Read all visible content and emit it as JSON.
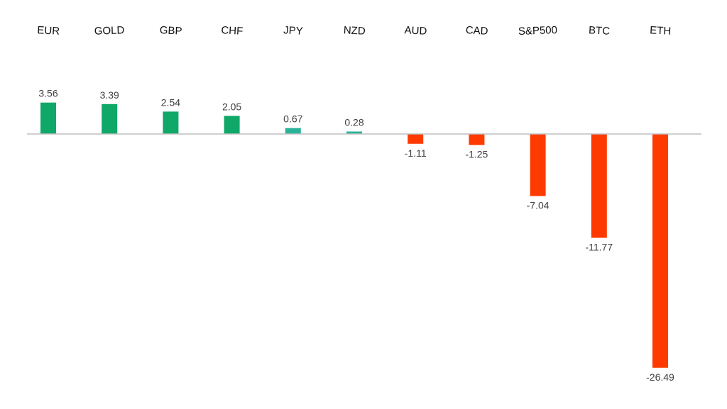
{
  "chart_data": {
    "type": "bar",
    "categories": [
      "EUR",
      "GOLD",
      "GBP",
      "CHF",
      "JPY",
      "NZD",
      "AUD",
      "CAD",
      "S&P500",
      "BTC",
      "ETH"
    ],
    "values": [
      3.56,
      3.39,
      2.54,
      2.05,
      0.67,
      0.28,
      -1.11,
      -1.25,
      -7.04,
      -11.77,
      -26.49
    ],
    "value_labels": [
      "3.56",
      "3.39",
      "2.54",
      "2.05",
      "0.67",
      "0.28",
      "-1.11",
      "-1.25",
      "-7.04",
      "-11.77",
      "-26.49"
    ],
    "title": "",
    "xlabel": "",
    "ylabel": "",
    "ylim": [
      -26.49,
      3.56
    ],
    "grid": false,
    "legend": "none",
    "category_label_position": "top",
    "colors": {
      "positive": "#10a869",
      "positive_small": "#2bb39a",
      "negative": "#ff3a00",
      "baseline": "#bfbfbf"
    }
  }
}
